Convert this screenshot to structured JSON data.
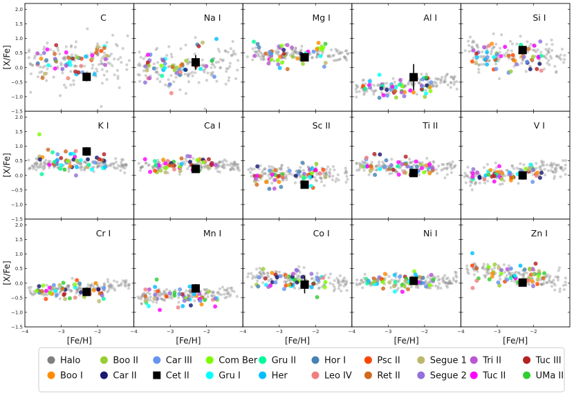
{
  "chart_data": {
    "type": "scatter",
    "figure_title": "",
    "xlabel": "[Fe/H]",
    "ylabel": "[X/Fe]",
    "xlim": [
      -4,
      -1
    ],
    "ylim": [
      -1.5,
      2.2
    ],
    "xticks": [
      -4,
      -3,
      -2
    ],
    "yticks": [
      -1.5,
      -1.0,
      -0.5,
      0.0,
      0.5,
      1.0,
      1.5,
      2.0
    ],
    "xtick_labels": [
      "−4",
      "−3",
      "−2"
    ],
    "ytick_labels": [
      "−1.5",
      "−1.0",
      "−0.5",
      "0.0",
      "0.5",
      "1.0",
      "1.5",
      "2.0"
    ],
    "legend_position": "bottom-center",
    "legend": [
      {
        "name": "Halo",
        "color": "#808080",
        "marker": "circle"
      },
      {
        "name": "Boo I",
        "color": "#ff8c00",
        "marker": "circle"
      },
      {
        "name": "Boo II",
        "color": "#9acd32",
        "marker": "circle"
      },
      {
        "name": "Car II",
        "color": "#191970",
        "marker": "circle"
      },
      {
        "name": "Car III",
        "color": "#6495ed",
        "marker": "circle"
      },
      {
        "name": "Cet II",
        "color": "#000000",
        "marker": "square"
      },
      {
        "name": "Com Ber",
        "color": "#7cfc00",
        "marker": "circle"
      },
      {
        "name": "Gru I",
        "color": "#00ffff",
        "marker": "circle"
      },
      {
        "name": "Gru II",
        "color": "#00fa9a",
        "marker": "circle"
      },
      {
        "name": "Her",
        "color": "#00bfff",
        "marker": "circle"
      },
      {
        "name": "Hor I",
        "color": "#4682b4",
        "marker": "circle"
      },
      {
        "name": "Leo IV",
        "color": "#f08080",
        "marker": "circle"
      },
      {
        "name": "Psc II",
        "color": "#ff4500",
        "marker": "circle"
      },
      {
        "name": "Ret II",
        "color": "#d2691e",
        "marker": "circle"
      },
      {
        "name": "Segue 1",
        "color": "#bdb76b",
        "marker": "circle"
      },
      {
        "name": "Segue 2",
        "color": "#9370db",
        "marker": "circle"
      },
      {
        "name": "Tri II",
        "color": "#ba55d3",
        "marker": "circle"
      },
      {
        "name": "Tuc II",
        "color": "#ff00ff",
        "marker": "circle"
      },
      {
        "name": "Tuc III",
        "color": "#b22222",
        "marker": "circle"
      },
      {
        "name": "UMa II",
        "color": "#32cd32",
        "marker": "circle"
      }
    ],
    "panels": [
      {
        "element": "C",
        "cetii": {
          "feh": -2.3,
          "xfe": -0.32,
          "err": 0.15
        },
        "halo_mean": 0.2,
        "halo_spread": 0.38,
        "halo_slope": 0.0,
        "sys_mean": 0.25,
        "sys_spread": 0.35
      },
      {
        "element": "Na I",
        "cetii": {
          "feh": -2.3,
          "xfe": 0.18,
          "err": 0.25
        },
        "halo_mean": 0.05,
        "halo_spread": 0.35,
        "halo_slope": 0.0,
        "sys_mean": 0.05,
        "sys_spread": 0.4
      },
      {
        "element": "Mg I",
        "cetii": {
          "feh": -2.3,
          "xfe": 0.35,
          "err": 0.12
        },
        "halo_mean": 0.45,
        "halo_spread": 0.12,
        "halo_slope": 0.0,
        "sys_mean": 0.45,
        "sys_spread": 0.2
      },
      {
        "element": "Al I",
        "cetii": {
          "feh": -2.3,
          "xfe": -0.33,
          "err": 0.45
        },
        "halo_mean": -0.6,
        "halo_spread": 0.15,
        "halo_slope": 0.12,
        "sys_mean": -0.65,
        "sys_spread": 0.2
      },
      {
        "element": "Si I",
        "cetii": {
          "feh": -2.3,
          "xfe": 0.6,
          "err": 0.15
        },
        "halo_mean": 0.45,
        "halo_spread": 0.22,
        "halo_slope": -0.05,
        "sys_mean": 0.35,
        "sys_spread": 0.25
      },
      {
        "element": "K I",
        "cetii": {
          "feh": -2.3,
          "xfe": 0.82,
          "err": 0.15
        },
        "halo_mean": 0.35,
        "halo_spread": 0.1,
        "halo_slope": 0.0,
        "sys_mean": 0.55,
        "sys_spread": 0.25
      },
      {
        "element": "Ca I",
        "cetii": {
          "feh": -2.3,
          "xfe": 0.22,
          "err": 0.1
        },
        "halo_mean": 0.35,
        "halo_spread": 0.1,
        "halo_slope": 0.0,
        "sys_mean": 0.35,
        "sys_spread": 0.15
      },
      {
        "element": "Sc II",
        "cetii": {
          "feh": -2.3,
          "xfe": -0.32,
          "err": 0.1
        },
        "halo_mean": 0.05,
        "halo_spread": 0.15,
        "halo_slope": 0.0,
        "sys_mean": 0.0,
        "sys_spread": 0.2
      },
      {
        "element": "Ti II",
        "cetii": {
          "feh": -2.3,
          "xfe": 0.08,
          "err": 0.1
        },
        "halo_mean": 0.3,
        "halo_spread": 0.12,
        "halo_slope": 0.0,
        "sys_mean": 0.3,
        "sys_spread": 0.18
      },
      {
        "element": "V I",
        "cetii": {
          "feh": -2.3,
          "xfe": 0.0,
          "err": 0.08
        },
        "halo_mean": 0.1,
        "halo_spread": 0.15,
        "halo_slope": 0.15,
        "sys_mean": 0.05,
        "sys_spread": 0.12
      },
      {
        "element": "Cr I",
        "cetii": {
          "feh": -2.3,
          "xfe": -0.3,
          "err": 0.1
        },
        "halo_mean": -0.2,
        "halo_spread": 0.1,
        "halo_slope": 0.1,
        "sys_mean": -0.25,
        "sys_spread": 0.15
      },
      {
        "element": "Mn I",
        "cetii": {
          "feh": -2.3,
          "xfe": -0.18,
          "err": 0.15
        },
        "halo_mean": -0.4,
        "halo_spread": 0.12,
        "halo_slope": 0.05,
        "sys_mean": -0.45,
        "sys_spread": 0.2
      },
      {
        "element": "Co I",
        "cetii": {
          "feh": -2.3,
          "xfe": -0.05,
          "err": 0.3
        },
        "halo_mean": 0.15,
        "halo_spread": 0.15,
        "halo_slope": -0.1,
        "sys_mean": 0.1,
        "sys_spread": 0.2
      },
      {
        "element": "Ni I",
        "cetii": {
          "feh": -2.3,
          "xfe": 0.08,
          "err": 0.1
        },
        "halo_mean": 0.05,
        "halo_spread": 0.12,
        "halo_slope": 0.0,
        "sys_mean": 0.05,
        "sys_spread": 0.15
      },
      {
        "element": "Zn I",
        "cetii": {
          "feh": -2.3,
          "xfe": 0.02,
          "err": 0.08
        },
        "halo_mean": 0.3,
        "halo_spread": 0.15,
        "halo_slope": -0.2,
        "sys_mean": 0.3,
        "sys_spread": 0.25
      }
    ]
  }
}
